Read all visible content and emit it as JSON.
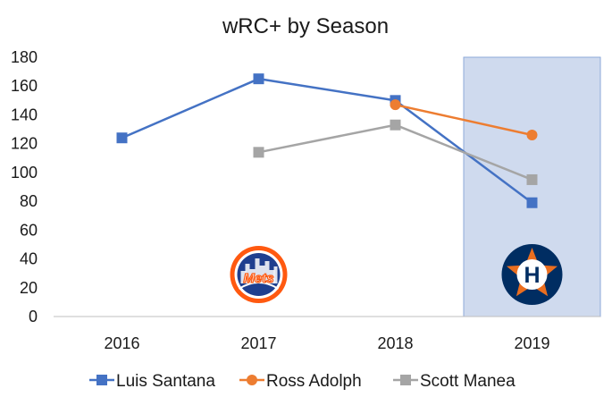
{
  "chart_data": {
    "type": "line",
    "title": "wRC+ by Season",
    "xlabel": "",
    "ylabel": "",
    "categories": [
      "2016",
      "2017",
      "2018",
      "2019"
    ],
    "ylim": [
      0,
      180
    ],
    "yticks": [
      0,
      20,
      40,
      60,
      80,
      100,
      120,
      140,
      160,
      180
    ],
    "grid": false,
    "highlight_category": "2019",
    "legend_position": "bottom",
    "series": [
      {
        "name": "Luis Santana",
        "color": "#4472c4",
        "marker": "square",
        "values": [
          124,
          165,
          150,
          79
        ]
      },
      {
        "name": "Ross Adolph",
        "color": "#ed7d31",
        "marker": "circle",
        "values": [
          null,
          null,
          147,
          126
        ]
      },
      {
        "name": "Scott Manea",
        "color": "#a5a5a5",
        "marker": "square",
        "values": [
          null,
          114,
          133,
          95
        ]
      }
    ],
    "annotations": [
      {
        "category": "2017",
        "kind": "team-logo",
        "team": "Mets",
        "label": "Mets"
      },
      {
        "category": "2019",
        "kind": "team-logo",
        "team": "Astros",
        "label": "H"
      }
    ],
    "colors": {
      "highlight_fill": "#cfdaee",
      "highlight_stroke": "#8eaad8",
      "axis": "#bfbfbf"
    }
  }
}
